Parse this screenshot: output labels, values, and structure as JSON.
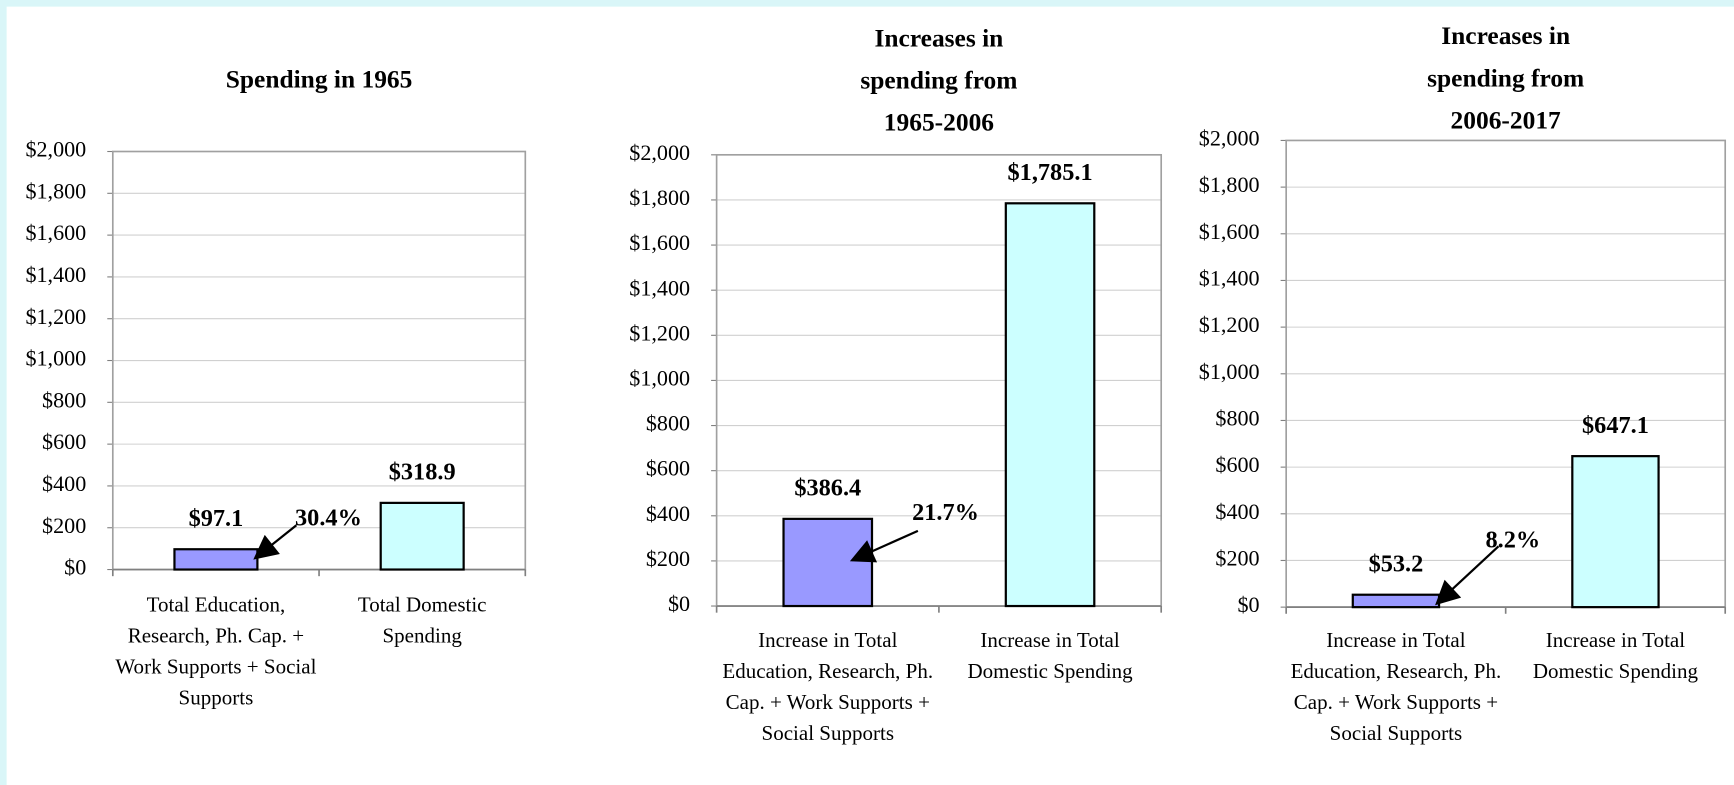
{
  "chart_data": [
    {
      "type": "bar",
      "title": "Spending in 1965",
      "categories": [
        "Total Education, Research, Ph. Cap. + Work Supports + Social Supports",
        "Total Domestic Spending"
      ],
      "values": [
        97.1,
        318.9
      ],
      "value_labels": [
        "$97.1",
        "$318.9"
      ],
      "colors": [
        "#9999ff",
        "#ccffff"
      ],
      "annotation": "30.4%",
      "ylim": [
        0,
        2000
      ],
      "yticks": [
        {
          "value": 0,
          "label": "$0"
        },
        {
          "value": 200,
          "label": "$200"
        },
        {
          "value": 400,
          "label": "$400"
        },
        {
          "value": 600,
          "label": "$600"
        },
        {
          "value": 800,
          "label": "$800"
        },
        {
          "value": 1000,
          "label": "$1,000"
        },
        {
          "value": 1200,
          "label": "$1,200"
        },
        {
          "value": 1400,
          "label": "$1,400"
        },
        {
          "value": 1600,
          "label": "$1,600"
        },
        {
          "value": 1800,
          "label": "$1,800"
        },
        {
          "value": 2000,
          "label": "$2,000"
        }
      ],
      "grid": true
    },
    {
      "type": "bar",
      "title": "Increases in spending from 1965-2006",
      "categories": [
        "Increase in Total Education, Research, Ph. Cap. + Work Supports + Social Supports",
        "Increase in Total Domestic Spending"
      ],
      "values": [
        386.4,
        1785.1
      ],
      "value_labels": [
        "$386.4",
        "$1,785.1"
      ],
      "colors": [
        "#9999ff",
        "#ccffff"
      ],
      "annotation": "21.7%",
      "ylim": [
        0,
        2000
      ],
      "yticks": [
        {
          "value": 0,
          "label": "$0"
        },
        {
          "value": 200,
          "label": "$200"
        },
        {
          "value": 400,
          "label": "$400"
        },
        {
          "value": 600,
          "label": "$600"
        },
        {
          "value": 800,
          "label": "$800"
        },
        {
          "value": 1000,
          "label": "$1,000"
        },
        {
          "value": 1200,
          "label": "$1,200"
        },
        {
          "value": 1400,
          "label": "$1,400"
        },
        {
          "value": 1600,
          "label": "$1,600"
        },
        {
          "value": 1800,
          "label": "$1,800"
        },
        {
          "value": 2000,
          "label": "$2,000"
        }
      ],
      "grid": true
    },
    {
      "type": "bar",
      "title": "Increases in spending from 2006-2017",
      "categories": [
        "Increase in Total Education, Research, Ph. Cap. + Work Supports + Social Supports",
        "Increase in Total Domestic Spending"
      ],
      "values": [
        53.2,
        647.1
      ],
      "value_labels": [
        "$53.2",
        "$647.1"
      ],
      "colors": [
        "#9999ff",
        "#ccffff"
      ],
      "annotation": "8.2%",
      "ylim": [
        0,
        2000
      ],
      "yticks": [
        {
          "value": 0,
          "label": "$0"
        },
        {
          "value": 200,
          "label": "$200"
        },
        {
          "value": 400,
          "label": "$400"
        },
        {
          "value": 600,
          "label": "$600"
        },
        {
          "value": 800,
          "label": "$800"
        },
        {
          "value": 1000,
          "label": "$1,000"
        },
        {
          "value": 1200,
          "label": "$1,200"
        },
        {
          "value": 1400,
          "label": "$1,400"
        },
        {
          "value": 1600,
          "label": "$1,600"
        },
        {
          "value": 1800,
          "label": "$1,800"
        },
        {
          "value": 2000,
          "label": "$2,000"
        }
      ],
      "grid": true
    }
  ]
}
